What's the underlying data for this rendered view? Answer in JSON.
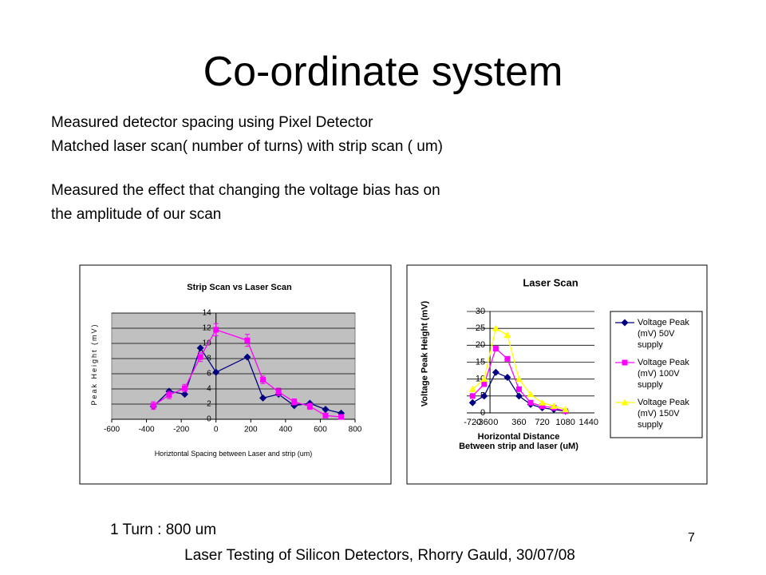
{
  "title": "Co-ordinate system",
  "body": [
    "Measured detector spacing using Pixel Detector",
    "Matched laser scan( number of turns) with strip scan ( um)",
    "Measured the effect that changing the voltage bias has on",
    "the amplitude of our scan"
  ],
  "note": "1 Turn : 800 um",
  "page_number": "7",
  "footer": "Laser Testing of Silicon Detectors, Rhorry Gauld, 30/07/08",
  "chart_data": [
    {
      "type": "line",
      "title": "Strip Scan vs Laser Scan",
      "x_label": "Horiztontal Spacing between Laser and strip (um)",
      "y_label": "Peak Height (mV)",
      "x": [
        -360,
        -270,
        -180,
        -90,
        0,
        180,
        270,
        360,
        450,
        540,
        630,
        720
      ],
      "series": [
        {
          "color": "#000080",
          "marker": "diamond",
          "values": [
            1.7,
            3.7,
            3.3,
            9.4,
            6.2,
            8.2,
            2.8,
            3.3,
            1.8,
            2.1,
            1.3,
            0.8
          ]
        },
        {
          "color": "#ff00ff",
          "marker": "square",
          "values": [
            1.8,
            3.2,
            4.1,
            8.2,
            11.8,
            10.4,
            5.2,
            3.6,
            2.3,
            1.7,
            0.5,
            0.3
          ],
          "errors": [
            0.5,
            0.5,
            0.5,
            0.6,
            0.8,
            0.8,
            0.5,
            0.5,
            0.4,
            0.4,
            0.3,
            0.3
          ]
        }
      ],
      "xlim": [
        -600,
        800
      ],
      "xticks": [
        -600,
        -400,
        -200,
        0,
        200,
        400,
        600,
        800
      ],
      "ylim": [
        0,
        14
      ],
      "yticks": [
        0,
        2,
        4,
        6,
        8,
        10,
        12,
        14
      ],
      "grid": true,
      "plot_background": "#c0c0c0"
    },
    {
      "type": "line",
      "title": "Laser Scan",
      "x_label": "Horizontal Distance Between strip and laser (uM)",
      "y_label": "Voltage Peak Height (mV)",
      "categories": [
        "-720",
        "-360",
        "0",
        null,
        "360",
        null,
        "720",
        null,
        "1080",
        null,
        "1440"
      ],
      "series": [
        {
          "name": "Voltage Peak (mV) 50V supply",
          "color": "#000080",
          "marker": "diamond",
          "values": [
            3,
            5,
            12,
            10.5,
            5,
            2.5,
            1.5,
            1,
            0.5,
            null,
            null
          ]
        },
        {
          "name": "Voltage Peak (mV) 100V supply",
          "color": "#ff00ff",
          "marker": "square",
          "values": [
            5,
            8.5,
            19,
            16,
            7,
            3,
            2,
            1.5,
            0.5,
            null,
            null
          ]
        },
        {
          "name": "Voltage Peak (mV) 150V supply",
          "color": "#ffff00",
          "marker": "triangle",
          "values": [
            7,
            10,
            25,
            23,
            10,
            5.5,
            3,
            2,
            1,
            null,
            null
          ]
        }
      ],
      "ylim": [
        0,
        30
      ],
      "yticks": [
        0,
        5,
        10,
        15,
        20,
        25,
        30
      ],
      "grid": true,
      "legend": "right"
    }
  ]
}
